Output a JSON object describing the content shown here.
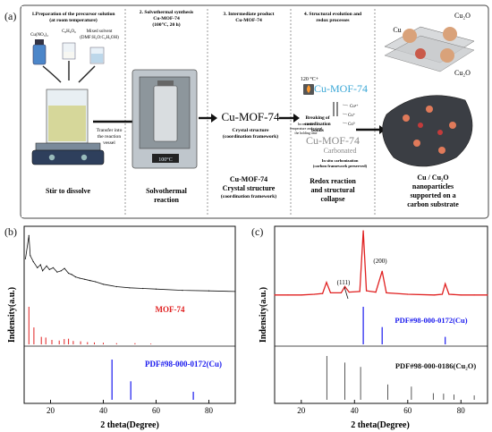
{
  "panel_a": {
    "label": "(a)",
    "steps": [
      {
        "title": "1.Preparation of the precursor solution",
        "subtitle": "(at room temperature)"
      },
      {
        "title": "2. Solvothermal synthesis",
        "line2": "Cu-MOF-74",
        "line3": "(100°C, 20 h)"
      },
      {
        "title": "3. Intermediate product",
        "line2": "Cu-MOF-74"
      },
      {
        "title": "4. Structural evolution and",
        "line2": "redox processes"
      }
    ],
    "reagents": {
      "cu_salt": "Cu(NO₃)₂",
      "ligand": "C₈H₆O₆",
      "solvent_line1": "Mixed solvent",
      "solvent_line2": "(DMF:H₂O:C₂H₅OH)"
    },
    "transfer_line1": "Transfer into",
    "transfer_line2": "the reaction",
    "transfer_line3": "vessel",
    "oven_display": "100°C",
    "mof_big": "Cu-MOF-74",
    "crystal_line1": "Crystal structure",
    "crystal_line2": "(coordination framework)",
    "temp": "120 °C+",
    "mof_blue": "Cu-MOF-74",
    "breaking_line1": "Breaking of",
    "breaking_line2": "coordination",
    "breaking_line3": "bonds",
    "increase_line1": "Increase the",
    "increase_line2": "temperature and extend",
    "increase_line3": "the holding time",
    "ion_1": "Cu²⁺",
    "ion_2": "Cu⁺",
    "ion_3": "Cu⁰",
    "mof_gray": "Cu-MOF-74",
    "carbonated": "Carbonated",
    "insitu_line1": "In situ carbonization",
    "insitu_line2": "(carbon framework preserved)",
    "inset_cu": "Cu",
    "inset_cu2o_top": "Cu₂O",
    "inset_cu2o_bottom": "Cu₂O",
    "captions": {
      "c1": "Stir to dissolve",
      "c2_line1": "Solvothermal",
      "c2_line2": "reaction",
      "c3_line1": "Cu-MOF-74",
      "c3_line2": "Crystal structure",
      "c3_line3": "(coordination framework)",
      "c4_line1": "Redox reaction",
      "c4_line2": "and structural",
      "c4_line3": "collapse",
      "c5_line1": "Cu / Cu₂O",
      "c5_line2": "nanoparticles",
      "c5_line3": "supported on a",
      "c5_line4": "carbon substrate"
    }
  },
  "panel_b": {
    "label": "(b)",
    "ylabel": "Indensity(a.u.)",
    "xlabel": "2 theta(Degree)",
    "xticks": [
      "20",
      "40",
      "60",
      "80"
    ],
    "legend_mof": "MOF-74",
    "legend_pdf": "PDF#98-000-0172(Cu)"
  },
  "panel_c": {
    "label": "(c)",
    "ylabel": "Indensity(a.u.)",
    "xlabel": "2 theta(Degree)",
    "xticks": [
      "20",
      "40",
      "60",
      "80"
    ],
    "ann_111": "(111)",
    "ann_200": "(200)",
    "legend_cu": "PDF#98-000-0172(Cu)",
    "legend_cu2o": "PDF#98-000-0186(Cu₂O)"
  },
  "colors": {
    "black": "#111111",
    "red": "#e02020",
    "blue": "#1a1aee",
    "gray": "#555555",
    "cyan": "#3aa7d6"
  },
  "chart_data": [
    {
      "type": "line",
      "panel": "b",
      "xlabel": "2 theta(Degree)",
      "ylabel": "Indensity(a.u.)",
      "xlim": [
        10,
        90
      ],
      "xticks": [
        20,
        40,
        60,
        80
      ],
      "series": [
        {
          "name": "",
          "kind": "pattern",
          "x": [
            10.5,
            11.8,
            12.3,
            13.5,
            15.0,
            16.2,
            17.0,
            18.5,
            19.6,
            21.0,
            22.5,
            24.0,
            25.3,
            26.8,
            28.0,
            29.5,
            31.0,
            33.0,
            35.0,
            37.0,
            40.0,
            45.0,
            50.0,
            55.0,
            60.0,
            70.0,
            80.0,
            90.0
          ],
          "y": [
            60,
            98,
            65,
            55,
            45,
            50,
            40,
            48,
            42,
            45,
            38,
            40,
            44,
            36,
            34,
            30,
            28,
            26,
            24,
            22,
            18,
            14,
            12,
            11,
            10,
            8,
            7,
            6
          ]
        },
        {
          "name": "MOF-74",
          "kind": "sticks",
          "x": [
            11.8,
            13.7,
            16.5,
            18.2,
            20.5,
            23.3,
            25.2,
            26.8,
            28.6,
            31.4,
            34.0,
            36.6,
            40.0,
            45.0,
            52.0,
            58.0
          ],
          "y": [
            100,
            45,
            20,
            18,
            12,
            10,
            14,
            15,
            9,
            8,
            6,
            5,
            4,
            3,
            3,
            2
          ]
        },
        {
          "name": "PDF#98-000-0172(Cu)",
          "kind": "sticks",
          "x": [
            43.3,
            50.4,
            74.1
          ],
          "y": [
            100,
            46,
            20
          ]
        }
      ]
    },
    {
      "type": "line",
      "panel": "c",
      "xlabel": "2 theta(Degree)",
      "ylabel": "Indensity(a.u.)",
      "xlim": [
        10,
        90
      ],
      "xticks": [
        20,
        40,
        60,
        80
      ],
      "series": [
        {
          "name": "",
          "kind": "pattern",
          "x": [
            10,
            15,
            20,
            25,
            28,
            29.5,
            31,
            35,
            36.4,
            38,
            42,
            43.3,
            44.5,
            48,
            50.4,
            52,
            60,
            70,
            73,
            74.1,
            75.5,
            80,
            85,
            90
          ],
          "y": [
            8,
            8,
            8,
            9,
            10,
            26,
            11,
            11,
            20,
            12,
            13,
            100,
            14,
            12,
            42,
            11,
            9,
            8,
            9,
            24,
            9,
            8,
            8,
            8
          ]
        },
        {
          "name": "PDF#98-000-0172(Cu)",
          "kind": "sticks",
          "x": [
            43.3,
            50.4,
            74.1
          ],
          "y": [
            100,
            46,
            20
          ]
        },
        {
          "name": "PDF#98-000-0186(Cu₂O)",
          "kind": "sticks",
          "x": [
            29.6,
            36.4,
            42.3,
            52.5,
            61.4,
            69.6,
            73.5,
            77.4,
            85.0
          ],
          "y": [
            100,
            85,
            75,
            35,
            30,
            15,
            14,
            12,
            10
          ]
        }
      ]
    }
  ]
}
